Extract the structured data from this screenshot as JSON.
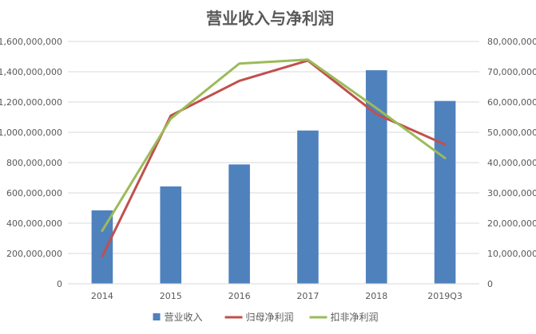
{
  "chart_data": {
    "type": "bar+line",
    "title": "营业收入与净利润",
    "categories": [
      "2014",
      "2015",
      "2016",
      "2017",
      "2018",
      "2019Q3"
    ],
    "y_left": {
      "min": 0,
      "max": 1600000000,
      "ticks": [
        0,
        200000000,
        400000000,
        600000000,
        800000000,
        1000000000,
        1200000000,
        1400000000,
        1600000000
      ],
      "tick_labels": [
        "0",
        "200,000,000",
        "400,000,000",
        "600,000,000",
        "800,000,000",
        "1,000,000,000",
        "1,200,000,000",
        "1,400,000,000",
        "1,600,000,000"
      ]
    },
    "y_right": {
      "min": 0,
      "max": 80000000,
      "ticks": [
        0,
        10000000,
        20000000,
        30000000,
        40000000,
        50000000,
        60000000,
        70000000,
        80000000
      ],
      "tick_labels": [
        "0",
        "10,000,000",
        "20,000,000",
        "30,000,000",
        "40,000,000",
        "50,000,000",
        "60,000,000",
        "70,000,000",
        "80,000,000"
      ]
    },
    "series": [
      {
        "name": "营业收入",
        "kind": "bar",
        "axis": "left",
        "color": "#4f81bd",
        "values": [
          485000000,
          643000000,
          788000000,
          1012000000,
          1410000000,
          1207000000
        ]
      },
      {
        "name": "归母净利润",
        "kind": "line",
        "axis": "right",
        "color": "#c0504d",
        "values": [
          9000000,
          55500000,
          67000000,
          73700000,
          56000000,
          46000000
        ]
      },
      {
        "name": "扣非净利润",
        "kind": "line",
        "axis": "right",
        "color": "#9bbb59",
        "values": [
          17500000,
          54500000,
          72700000,
          74000000,
          58000000,
          41500000
        ]
      }
    ],
    "grid": true,
    "legend_position": "bottom"
  }
}
